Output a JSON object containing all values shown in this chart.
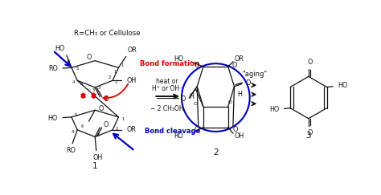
{
  "bg_color": "#ffffff",
  "red_color": "#dd0000",
  "blue_color": "#0000bb",
  "black": "#111111",
  "header": "R=CH₃ or Cellulose",
  "bf_text": "Bond formation",
  "bc_text": "Bond cleavage",
  "rxn1": "heat or",
  "rxn2": "H⁺ or OH⁻",
  "rxn3": "− 2 CH₃OH",
  "aging": "\"aging\"",
  "lbl1": "1",
  "lbl2": "2",
  "lbl3": "3",
  "figsize": [
    4.74,
    2.43
  ],
  "dpi": 100
}
